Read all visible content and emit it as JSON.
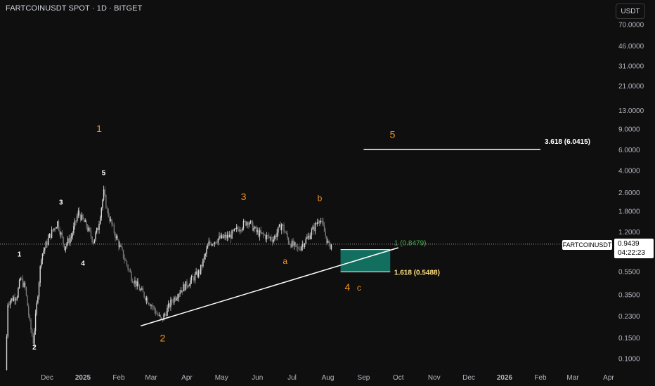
{
  "header": {
    "title": "FARTCOINUSDT SPOT · 1D · BITGET",
    "currency_button": "USDT"
  },
  "price_tag": {
    "price": "0.9439",
    "countdown": "04:22:23",
    "symbol": "FARTCOINUSDT"
  },
  "chart_data": {
    "type": "candlestick",
    "y_scale": "log",
    "ylim": [
      0.08,
      90
    ],
    "y_ticks": [
      {
        "v": 70,
        "label": "70.0000"
      },
      {
        "v": 46,
        "label": "46.0000"
      },
      {
        "v": 31,
        "label": "31.0000"
      },
      {
        "v": 21,
        "label": "21.0000"
      },
      {
        "v": 13,
        "label": "13.0000"
      },
      {
        "v": 9,
        "label": "9.0000"
      },
      {
        "v": 6,
        "label": "6.0000"
      },
      {
        "v": 4,
        "label": "4.0000"
      },
      {
        "v": 2.6,
        "label": "2.6000"
      },
      {
        "v": 1.8,
        "label": "1.8000"
      },
      {
        "v": 1.2,
        "label": "1.2000"
      },
      {
        "v": 0.55,
        "label": "0.5500"
      },
      {
        "v": 0.35,
        "label": "0.3500"
      },
      {
        "v": 0.23,
        "label": "0.2300"
      },
      {
        "v": 0.15,
        "label": "0.1500"
      },
      {
        "v": 0.1,
        "label": "0.1000"
      }
    ],
    "x_ticks": [
      {
        "date": "2024-12-01",
        "label": "Dec",
        "bold": false
      },
      {
        "date": "2025-01-01",
        "label": "2025",
        "bold": true
      },
      {
        "date": "2025-02-01",
        "label": "Feb",
        "bold": false
      },
      {
        "date": "2025-03-01",
        "label": "Mar",
        "bold": false
      },
      {
        "date": "2025-04-01",
        "label": "Apr",
        "bold": false
      },
      {
        "date": "2025-05-01",
        "label": "May",
        "bold": false
      },
      {
        "date": "2025-06-01",
        "label": "Jun",
        "bold": false
      },
      {
        "date": "2025-07-01",
        "label": "Jul",
        "bold": false
      },
      {
        "date": "2025-08-01",
        "label": "Aug",
        "bold": false
      },
      {
        "date": "2025-09-01",
        "label": "Sep",
        "bold": false
      },
      {
        "date": "2025-10-01",
        "label": "Oct",
        "bold": false
      },
      {
        "date": "2025-11-01",
        "label": "Nov",
        "bold": false
      },
      {
        "date": "2025-12-01",
        "label": "Dec",
        "bold": false
      },
      {
        "date": "2026-01-01",
        "label": "2026",
        "bold": true
      },
      {
        "date": "2026-02-01",
        "label": "Feb",
        "bold": false
      },
      {
        "date": "2026-03-01",
        "label": "Mar",
        "bold": false
      },
      {
        "date": "2026-04-01",
        "label": "Apr",
        "bold": false
      }
    ],
    "price_path": [
      {
        "date": "2024-10-26",
        "price": 0.08
      },
      {
        "date": "2024-10-28",
        "price": 0.3
      },
      {
        "date": "2024-11-05",
        "price": 0.35
      },
      {
        "date": "2024-11-08",
        "price": 0.48
      },
      {
        "date": "2024-11-12",
        "price": 0.4
      },
      {
        "date": "2024-11-16",
        "price": 0.2
      },
      {
        "date": "2024-11-19",
        "price": 0.14
      },
      {
        "date": "2024-11-26",
        "price": 0.75
      },
      {
        "date": "2024-12-03",
        "price": 1.1
      },
      {
        "date": "2024-12-10",
        "price": 1.45
      },
      {
        "date": "2024-12-16",
        "price": 0.9
      },
      {
        "date": "2024-12-22",
        "price": 1.1
      },
      {
        "date": "2024-12-28",
        "price": 1.75
      },
      {
        "date": "2025-01-04",
        "price": 1.35
      },
      {
        "date": "2025-01-10",
        "price": 1.0
      },
      {
        "date": "2025-01-14",
        "price": 1.3
      },
      {
        "date": "2025-01-19",
        "price": 2.6
      },
      {
        "date": "2025-01-22",
        "price": 1.8
      },
      {
        "date": "2025-01-28",
        "price": 1.2
      },
      {
        "date": "2025-02-05",
        "price": 0.75
      },
      {
        "date": "2025-02-12",
        "price": 0.5
      },
      {
        "date": "2025-02-20",
        "price": 0.38
      },
      {
        "date": "2025-02-28",
        "price": 0.3
      },
      {
        "date": "2025-03-05",
        "price": 0.25
      },
      {
        "date": "2025-03-10",
        "price": 0.21
      },
      {
        "date": "2025-03-18",
        "price": 0.3
      },
      {
        "date": "2025-03-26",
        "price": 0.38
      },
      {
        "date": "2025-04-03",
        "price": 0.45
      },
      {
        "date": "2025-04-12",
        "price": 0.55
      },
      {
        "date": "2025-04-20",
        "price": 0.95
      },
      {
        "date": "2025-04-28",
        "price": 1.05
      },
      {
        "date": "2025-05-08",
        "price": 1.1
      },
      {
        "date": "2025-05-16",
        "price": 1.3
      },
      {
        "date": "2025-05-24",
        "price": 1.5
      },
      {
        "date": "2025-05-31",
        "price": 1.2
      },
      {
        "date": "2025-06-08",
        "price": 1.1
      },
      {
        "date": "2025-06-15",
        "price": 1.05
      },
      {
        "date": "2025-06-22",
        "price": 1.4
      },
      {
        "date": "2025-06-28",
        "price": 1.0
      },
      {
        "date": "2025-07-06",
        "price": 0.85
      },
      {
        "date": "2025-07-14",
        "price": 1.05
      },
      {
        "date": "2025-07-20",
        "price": 1.3
      },
      {
        "date": "2025-07-25",
        "price": 1.6
      },
      {
        "date": "2025-07-29",
        "price": 1.2
      },
      {
        "date": "2025-08-02",
        "price": 0.9
      },
      {
        "date": "2025-08-04",
        "price": 0.94
      }
    ],
    "trendline": {
      "start": {
        "date": "2025-02-20",
        "price": 0.19
      },
      "end": {
        "date": "2025-10-01",
        "price": 0.88
      }
    },
    "target_line": {
      "start": {
        "date": "2025-09-01",
        "price": 6.0415
      },
      "end": {
        "date": "2026-02-01",
        "price": 6.0415
      },
      "label": "3.618 (6.0415)"
    },
    "zone": {
      "start": "2025-08-12",
      "end": "2025-09-24",
      "top": 0.8479,
      "bottom": 0.5488
    },
    "fib_labels": [
      {
        "text": "1 (0.8479)",
        "date": "2025-09-25",
        "price": 0.8479,
        "color": "#4caf50"
      },
      {
        "text": "1.618 (0.5488)",
        "date": "2025-09-25",
        "price": 0.5488,
        "color": "#ffe082"
      }
    ],
    "current_price": 0.9439,
    "wave_labels": [
      {
        "text": "1",
        "date": "2025-01-15",
        "price": 8.5,
        "color": "#f7931a",
        "size": 14
      },
      {
        "text": "2",
        "date": "2025-03-11",
        "price": 0.14,
        "color": "#f7931a",
        "size": 14
      },
      {
        "text": "3",
        "date": "2025-05-20",
        "price": 2.25,
        "color": "#f7931a",
        "size": 14
      },
      {
        "text": "4",
        "date": "2025-08-18",
        "price": 0.38,
        "color": "#f7931a",
        "size": 14
      },
      {
        "text": "5",
        "date": "2025-09-26",
        "price": 7.6,
        "color": "#f7931a",
        "size": 14
      },
      {
        "text": "1",
        "date": "2024-11-07",
        "price": 0.74,
        "color": "#ffffff",
        "size": 10
      },
      {
        "text": "2",
        "date": "2024-11-20",
        "price": 0.12,
        "color": "#ffffff",
        "size": 10
      },
      {
        "text": "3",
        "date": "2024-12-13",
        "price": 2.05,
        "color": "#ffffff",
        "size": 10
      },
      {
        "text": "4",
        "date": "2025-01-01",
        "price": 0.62,
        "color": "#ffffff",
        "size": 10
      },
      {
        "text": "5",
        "date": "2025-01-19",
        "price": 3.65,
        "color": "#ffffff",
        "size": 10
      },
      {
        "text": "a",
        "date": "2025-06-25",
        "price": 0.64,
        "color": "#f7931a",
        "size": 12
      },
      {
        "text": "b",
        "date": "2025-07-25",
        "price": 2.2,
        "color": "#f7931a",
        "size": 12
      },
      {
        "text": "c",
        "date": "2025-08-28",
        "price": 0.38,
        "color": "#f7931a",
        "size": 12
      }
    ]
  },
  "colors": {
    "background": "#0f0f0f",
    "zone_fill": "#13806d",
    "wave_orange": "#f7931a",
    "axis_text": "#b2b5be"
  }
}
